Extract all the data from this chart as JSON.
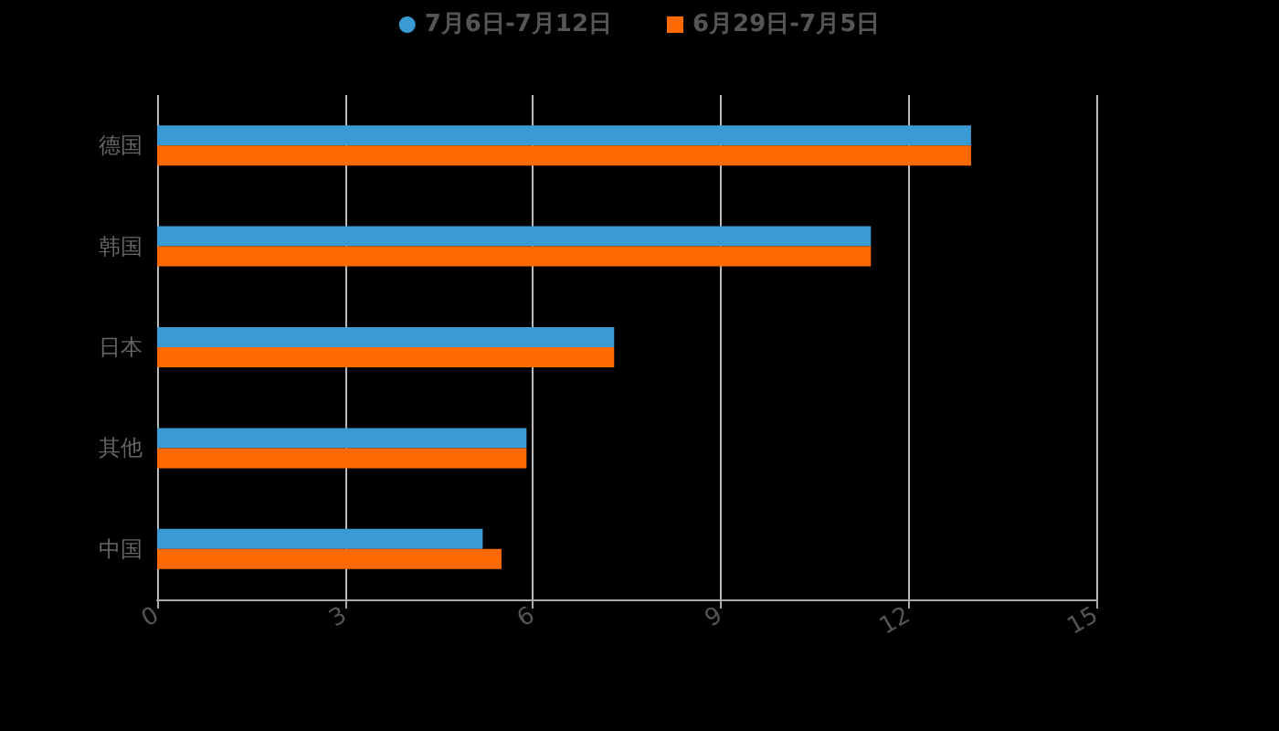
{
  "chart_data": {
    "type": "bar",
    "orientation": "horizontal",
    "categories": [
      "德国",
      "韩国",
      "日本",
      "其他",
      "中国"
    ],
    "series": [
      {
        "name": "7月6日-7月12日",
        "color": "#3a9ad3",
        "values": [
          13,
          11.4,
          7.3,
          5.9,
          5.2
        ]
      },
      {
        "name": "6月29日-7月5日",
        "color": "#ff6a00",
        "values": [
          13,
          11.4,
          7.3,
          5.9,
          5.5
        ]
      }
    ],
    "xlim": [
      0,
      15
    ],
    "xticks": [
      0,
      3,
      6,
      9,
      12,
      15
    ],
    "grid": "x",
    "legend": "top"
  }
}
